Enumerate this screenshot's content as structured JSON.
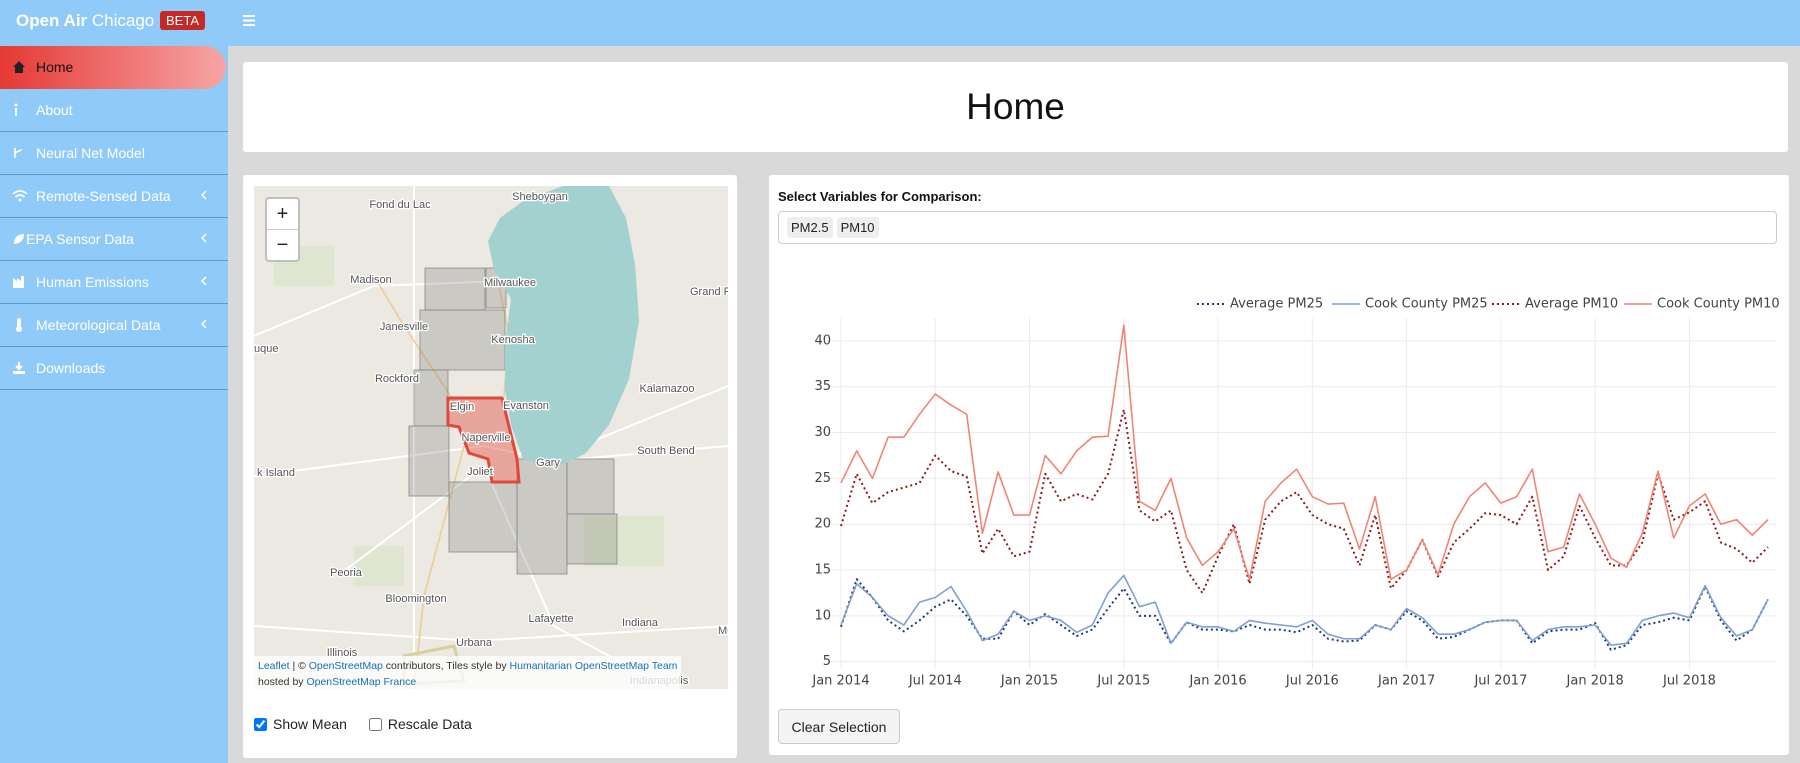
{
  "header": {
    "brand_bold": "Open Air",
    "brand_light": "Chicago",
    "badge": "BETA"
  },
  "sidebar": {
    "items": [
      "Home",
      "About",
      "Neural Net Model",
      "Remote-Sensed Data",
      "EPA Sensor Data",
      "Human Emissions",
      "Meteorological Data",
      "Downloads"
    ]
  },
  "page_title": "Home",
  "map": {
    "zoom_in": "+",
    "zoom_out": "−",
    "labels": [
      "Sheboygan",
      "Fond du Lac",
      "Madison",
      "Milwaukee",
      "Grand R",
      "Janesville",
      "Kenosha",
      "uque",
      "Rockford",
      "Kalamazoo",
      "Elgin",
      "Evanston",
      "Naperville",
      "South Bend",
      "Gary",
      "Joliet",
      "k Island",
      "Peoria",
      "Bloomington",
      "Lafayette",
      "Indiana",
      "Urbana",
      "Illinois",
      "Mu",
      "Indianapolis"
    ],
    "attribution": [
      [
        "Leaflet",
        " | © ",
        "OpenStreetMap",
        " contributors, Tiles style by ",
        "Humanitarian OpenStreetMap Team"
      ],
      [
        "hosted by ",
        "OpenStreetMap France"
      ]
    ]
  },
  "controls": {
    "show_mean": {
      "label": "Show Mean",
      "checked": true
    },
    "rescale": {
      "label": "Rescale Data",
      "checked": false
    }
  },
  "selector": {
    "label": "Select Variables for Comparison:",
    "chips": [
      "PM2.5",
      "PM10"
    ]
  },
  "button": "Clear Selection",
  "chart_data": {
    "type": "line",
    "x": [
      "2014-01",
      "2014-02",
      "2014-03",
      "2014-04",
      "2014-05",
      "2014-06",
      "2014-07",
      "2014-08",
      "2014-09",
      "2014-10",
      "2014-11",
      "2014-12",
      "2015-01",
      "2015-02",
      "2015-03",
      "2015-04",
      "2015-05",
      "2015-06",
      "2015-07",
      "2015-08",
      "2015-09",
      "2015-10",
      "2015-11",
      "2015-12",
      "2016-01",
      "2016-02",
      "2016-03",
      "2016-04",
      "2016-05",
      "2016-06",
      "2016-07",
      "2016-08",
      "2016-09",
      "2016-10",
      "2016-11",
      "2016-12",
      "2017-01",
      "2017-02",
      "2017-03",
      "2017-04",
      "2017-05",
      "2017-06",
      "2017-07",
      "2017-08",
      "2017-09",
      "2017-10",
      "2017-11",
      "2017-12",
      "2018-01",
      "2018-02",
      "2018-03",
      "2018-04",
      "2018-05",
      "2018-06",
      "2018-07",
      "2018-08",
      "2018-09",
      "2018-10",
      "2018-11",
      "2018-12"
    ],
    "xticks": [
      {
        "value": "2014-01",
        "label": "Jan 2014"
      },
      {
        "value": "2014-07",
        "label": "Jul 2014"
      },
      {
        "value": "2015-01",
        "label": "Jan 2015"
      },
      {
        "value": "2015-07",
        "label": "Jul 2015"
      },
      {
        "value": "2016-01",
        "label": "Jan 2016"
      },
      {
        "value": "2016-07",
        "label": "Jul 2016"
      },
      {
        "value": "2017-01",
        "label": "Jan 2017"
      },
      {
        "value": "2017-07",
        "label": "Jul 2017"
      },
      {
        "value": "2018-01",
        "label": "Jan 2018"
      },
      {
        "value": "2018-07",
        "label": "Jul 2018"
      }
    ],
    "ylim": [
      4.2,
      42.5
    ],
    "yticks": [
      5,
      10,
      15,
      20,
      25,
      30,
      35,
      40
    ],
    "grid": true,
    "legend": "top-right",
    "series": [
      {
        "name": "Average PM25",
        "color": "#1d3a78",
        "dash": "dot",
        "values": [
          8.8,
          14,
          12,
          9.5,
          8.3,
          9.5,
          11,
          11.8,
          10,
          7.5,
          7.5,
          10.5,
          9,
          10.2,
          9,
          7.8,
          8.5,
          10.8,
          13,
          10,
          10,
          7,
          9.3,
          8.5,
          8.5,
          8.3,
          9,
          8.5,
          8.5,
          8.2,
          9,
          7.5,
          7.2,
          7.3,
          9,
          8.5,
          10.5,
          9.5,
          7.5,
          7.7,
          8.5,
          9.3,
          9.5,
          9.5,
          7,
          8.3,
          8.5,
          8.5,
          9.2,
          6.3,
          6.8,
          9,
          9.3,
          9.8,
          9.5,
          13.2,
          9.5,
          7.3,
          8.5,
          11.8
        ]
      },
      {
        "name": "Cook County PM25",
        "color": "#7f9fd6",
        "dash": "solid",
        "values": [
          9,
          13.5,
          12,
          10,
          9,
          11.5,
          12,
          13.2,
          10.5,
          7.3,
          8,
          10.5,
          9.5,
          10,
          9.5,
          8.2,
          9,
          12.5,
          14.4,
          11,
          11.5,
          7,
          9.3,
          8.8,
          8.8,
          8.3,
          9.5,
          9.2,
          9,
          8.8,
          9.5,
          8,
          7.5,
          7.5,
          9,
          8.5,
          10.8,
          9.8,
          8,
          8,
          8.5,
          9.3,
          9.5,
          9.5,
          7.3,
          8.5,
          8.8,
          8.8,
          9,
          6.8,
          7,
          9.5,
          10,
          10.3,
          9.8,
          13.3,
          9.8,
          7.8,
          8.5,
          11.8
        ]
      },
      {
        "name": "Average PM10",
        "color": "#8b1a1a",
        "dash": "dot",
        "values": [
          19.8,
          25.5,
          22.3,
          23.5,
          24,
          24.5,
          27.5,
          25.8,
          25.2,
          16.8,
          19.5,
          16.5,
          17,
          25.5,
          22.5,
          23.3,
          22.7,
          25.5,
          32.5,
          21.5,
          20.3,
          21.5,
          15,
          12.5,
          16.5,
          20,
          13.5,
          20.5,
          22.5,
          23.5,
          21,
          20,
          19.5,
          15.5,
          21,
          13,
          15,
          18.3,
          14.3,
          18,
          19.5,
          21.2,
          21,
          20,
          23,
          15,
          16.5,
          22,
          18.5,
          15.5,
          15.5,
          18,
          25.5,
          20.5,
          21.3,
          22.5,
          18,
          17.3,
          15.8,
          17.5
        ]
      },
      {
        "name": "Cook County PM10",
        "color": "#f28474",
        "dash": "solid",
        "values": [
          24.5,
          28,
          25,
          29.5,
          29.5,
          32,
          34.2,
          33,
          32,
          19,
          25.7,
          21,
          21,
          27.5,
          25.5,
          28,
          29.5,
          29.6,
          41.7,
          22.5,
          21.5,
          25,
          18.5,
          15.5,
          17,
          19.5,
          14,
          22.5,
          24.5,
          26,
          23,
          22.2,
          22.3,
          17.3,
          23,
          14,
          15,
          18.3,
          14.5,
          20,
          23,
          24.5,
          22.3,
          23,
          26,
          17,
          17.5,
          23.3,
          20,
          16.3,
          15.3,
          19,
          25.8,
          18.5,
          22,
          23.3,
          20,
          20.5,
          18.8,
          20.5
        ]
      }
    ]
  }
}
